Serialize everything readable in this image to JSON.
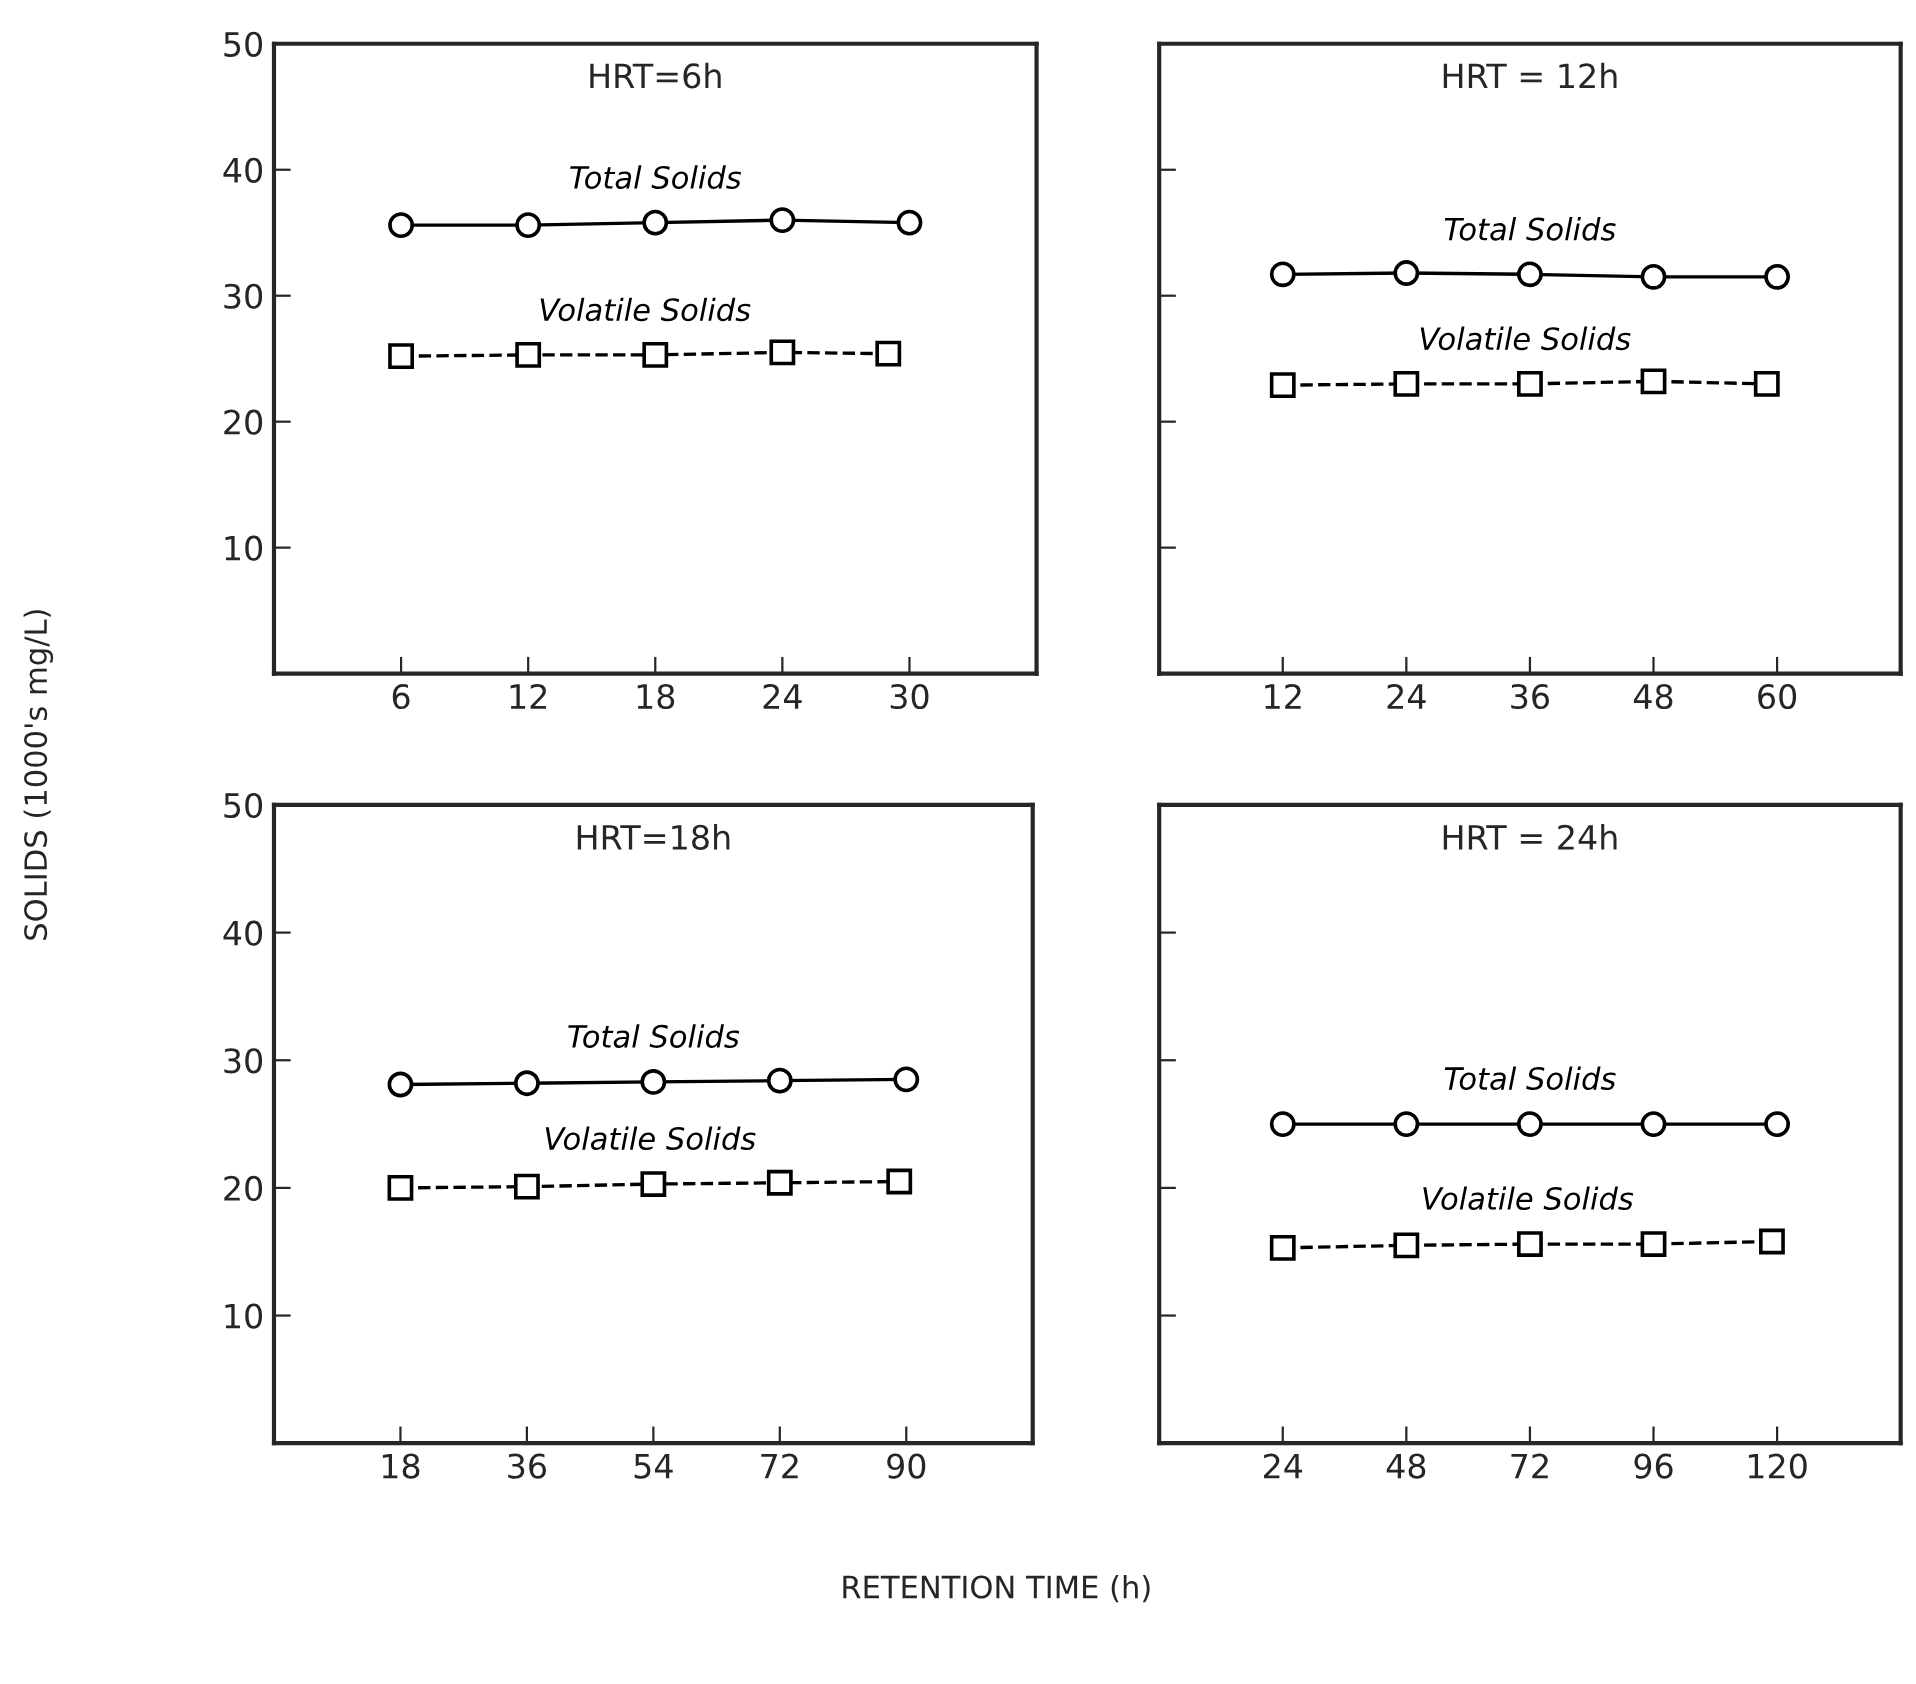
{
  "chart_data": [
    {
      "type": "line",
      "title": "HRT=6h",
      "ylabel": "SOLIDS (1000's mg/L)",
      "x": [
        6,
        12,
        18,
        24,
        29
      ],
      "xlim": [
        0,
        36
      ],
      "xticks": [
        6,
        12,
        18,
        24,
        30
      ],
      "ylim": [
        0,
        50
      ],
      "yticks": [
        10,
        20,
        30,
        40,
        50
      ],
      "grid": false,
      "legend": false,
      "series": [
        {
          "name": "Total Solids",
          "color": "#000000",
          "marker": "circle",
          "line_style": "solid",
          "x": [
            6,
            12,
            18,
            24,
            30
          ],
          "values": [
            35.6,
            35.6,
            35.8,
            36.0,
            35.8
          ]
        },
        {
          "name": "Volatile Solids",
          "color": "#000000",
          "marker": "square",
          "line_style": "dashed",
          "values": [
            25.2,
            25.3,
            25.3,
            25.5,
            25.4
          ]
        }
      ]
    },
    {
      "type": "line",
      "title": "HRT = 12h",
      "x": [
        12,
        24,
        36,
        48,
        59
      ],
      "xlim": [
        0,
        72
      ],
      "xticks": [
        12,
        24,
        36,
        48,
        60
      ],
      "ylim": [
        0,
        50
      ],
      "yticks": [
        10,
        20,
        30,
        40,
        50
      ],
      "tick_labels": "x",
      "grid": false,
      "legend": false,
      "series": [
        {
          "name": "Total Solids",
          "color": "#000000",
          "marker": "circle",
          "line_style": "solid",
          "x": [
            12,
            24,
            36,
            48,
            60
          ],
          "values": [
            31.7,
            31.8,
            31.7,
            31.5,
            31.5
          ]
        },
        {
          "name": "Volatile Solids",
          "color": "#000000",
          "marker": "square",
          "line_style": "dashed",
          "values": [
            22.9,
            23.0,
            23.0,
            23.2,
            23.0
          ]
        }
      ]
    },
    {
      "type": "line",
      "title": "HRT=18h",
      "x": [
        18,
        36,
        54,
        72,
        89
      ],
      "xlim": [
        0,
        108
      ],
      "xticks": [
        18,
        36,
        54,
        72,
        90
      ],
      "ylim": [
        0,
        50
      ],
      "yticks": [
        10,
        20,
        30,
        40,
        50
      ],
      "grid": false,
      "legend": false,
      "series": [
        {
          "name": "Total Solids",
          "color": "#000000",
          "marker": "circle",
          "line_style": "solid",
          "x": [
            18,
            36,
            54,
            72,
            90
          ],
          "values": [
            28.1,
            28.2,
            28.3,
            28.4,
            28.5
          ]
        },
        {
          "name": "Volatile Solids",
          "color": "#000000",
          "marker": "square",
          "line_style": "dashed",
          "values": [
            20.0,
            20.1,
            20.3,
            20.4,
            20.5
          ]
        }
      ]
    },
    {
      "type": "line",
      "title": "HRT = 24h",
      "xlabel": "RETENTION TIME (h)",
      "x": [
        24,
        48,
        72,
        96,
        119
      ],
      "xlim": [
        0,
        144
      ],
      "xticks": [
        24,
        48,
        72,
        96,
        120
      ],
      "ylim": [
        0,
        50
      ],
      "yticks": [
        10,
        20,
        30,
        40,
        50
      ],
      "tick_labels": "x",
      "grid": false,
      "legend": false,
      "series": [
        {
          "name": "Total Solids",
          "color": "#000000",
          "marker": "circle",
          "line_style": "solid",
          "x": [
            24,
            48,
            72,
            96,
            120
          ],
          "values": [
            25.0,
            25.0,
            25.0,
            25.0,
            25.0
          ]
        },
        {
          "name": "Volatile Solids",
          "color": "#000000",
          "marker": "square",
          "line_style": "dashed",
          "values": [
            15.3,
            15.5,
            15.6,
            15.6,
            15.8
          ]
        }
      ]
    }
  ]
}
